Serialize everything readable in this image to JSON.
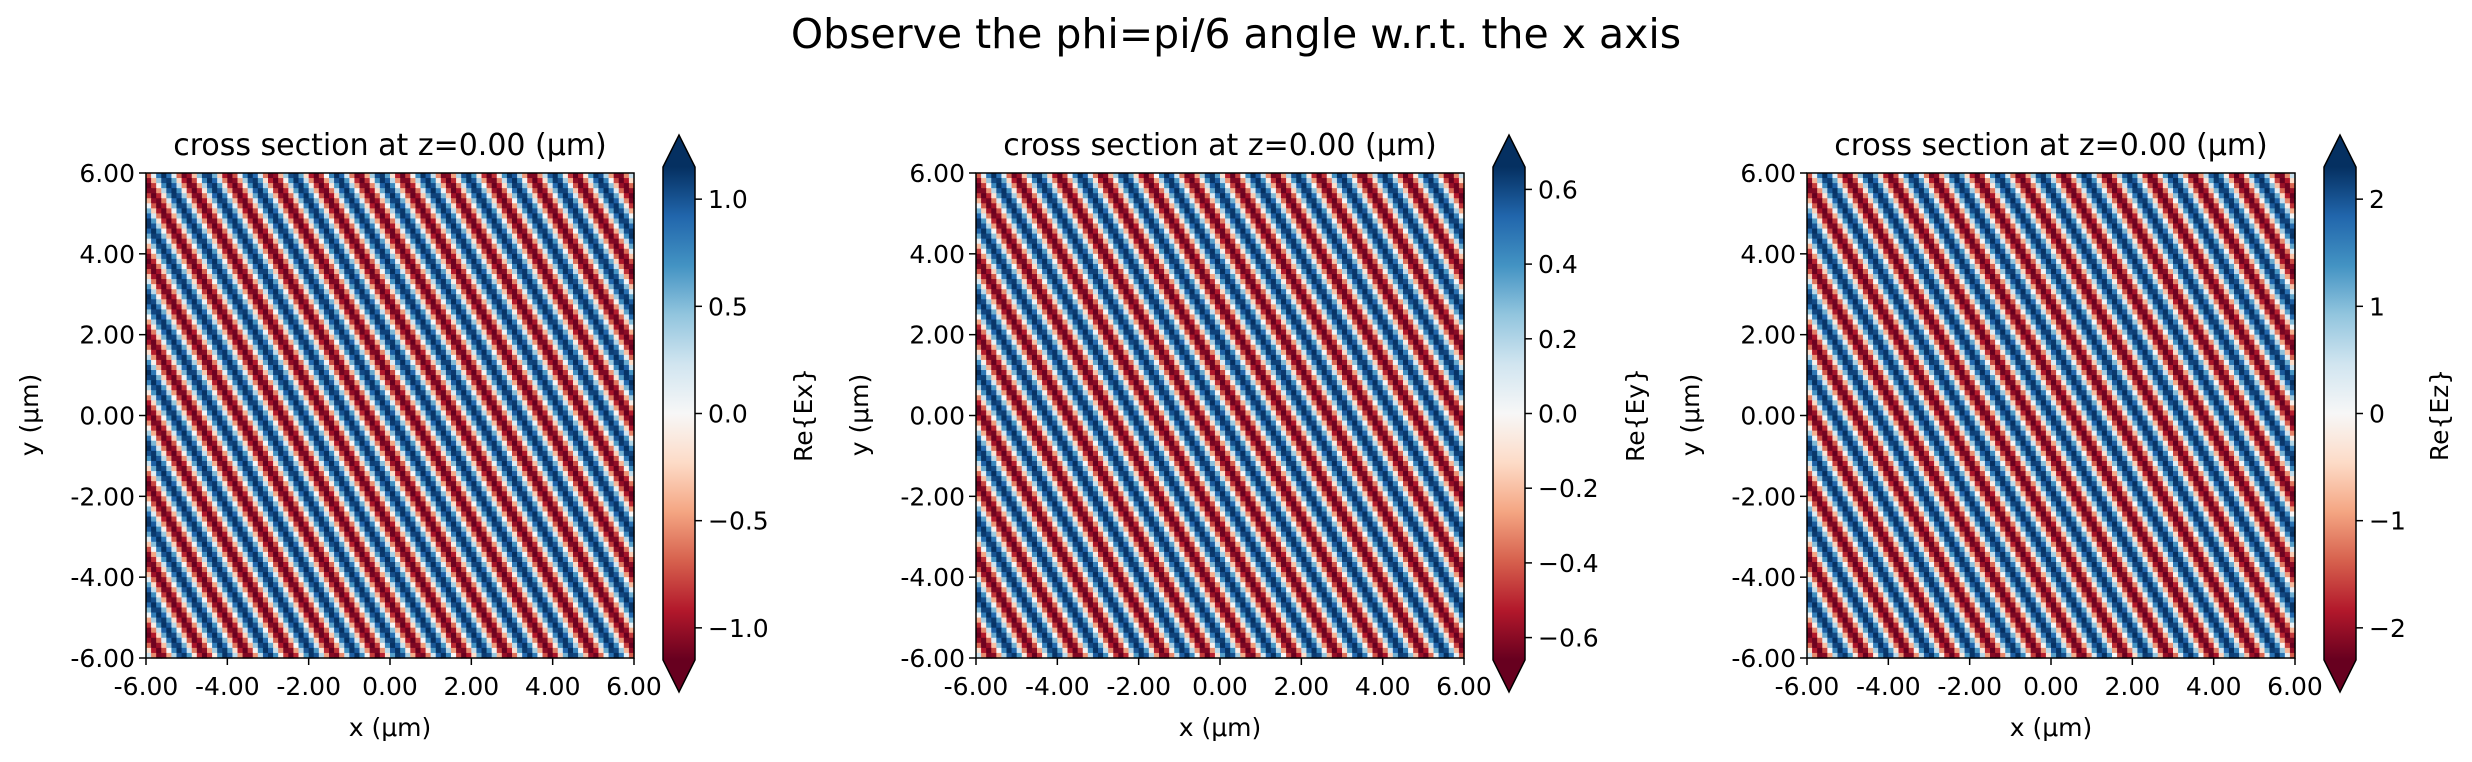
{
  "figure": {
    "suptitle": "Observe the phi=pi/6 angle w.r.t. the x axis"
  },
  "panels": [
    {
      "title": "cross section at z=0.00 (μm)",
      "xlabel": "x (μm)",
      "ylabel": "y (μm)",
      "xticks": [
        "-6.00",
        "-4.00",
        "-2.00",
        "0.00",
        "2.00",
        "4.00",
        "6.00"
      ],
      "yticks": [
        "6.00",
        "4.00",
        "2.00",
        "0.00",
        "-2.00",
        "-4.00",
        "-6.00"
      ],
      "colorbar_label": "Re{Ex}",
      "colorbar_ticks": [
        "1.0",
        "0.5",
        "0.0",
        "−0.5",
        "−1.0"
      ]
    },
    {
      "title": "cross section at z=0.00 (μm)",
      "xlabel": "x (μm)",
      "ylabel": "y (μm)",
      "xticks": [
        "-6.00",
        "-4.00",
        "-2.00",
        "0.00",
        "2.00",
        "4.00",
        "6.00"
      ],
      "yticks": [
        "6.00",
        "4.00",
        "2.00",
        "0.00",
        "-2.00",
        "-4.00",
        "-6.00"
      ],
      "colorbar_label": "Re{Ey}",
      "colorbar_ticks": [
        "0.6",
        "0.4",
        "0.2",
        "0.0",
        "−0.2",
        "−0.4",
        "−0.6"
      ]
    },
    {
      "title": "cross section at z=0.00 (μm)",
      "xlabel": "x (μm)",
      "ylabel": "y (μm)",
      "xticks": [
        "-6.00",
        "-4.00",
        "-2.00",
        "0.00",
        "2.00",
        "4.00",
        "6.00"
      ],
      "yticks": [
        "6.00",
        "4.00",
        "2.00",
        "0.00",
        "-2.00",
        "-4.00",
        "-6.00"
      ],
      "colorbar_label": "Re{Ez}",
      "colorbar_ticks": [
        "2",
        "1",
        "0",
        "−1",
        "−2"
      ]
    }
  ],
  "chart_data": [
    {
      "type": "heatmap",
      "title": "cross section at z=0.00 (μm)",
      "xlabel": "x (μm)",
      "ylabel": "y (μm)",
      "xlim": [
        -6,
        6
      ],
      "ylim": [
        -6,
        6
      ],
      "xtick_values": [
        -6,
        -4,
        -2,
        0,
        2,
        4,
        6
      ],
      "ytick_values": [
        -6,
        -4,
        -2,
        0,
        2,
        4,
        6
      ],
      "colormap": "RdBu",
      "color_low": "#67001f",
      "color_mid": "#f7f7f7",
      "color_high": "#053061",
      "colorbar_label": "Re{Ex}",
      "colorbar_range": [
        -1.15,
        1.15
      ],
      "colorbar_tick_values": [
        1.0,
        0.5,
        0.0,
        -0.5,
        -1.0
      ],
      "colorbar_extend": "both",
      "amplitude": 1.15,
      "phi_deg": 30,
      "stripe_count_across_x": 13
    },
    {
      "type": "heatmap",
      "title": "cross section at z=0.00 (μm)",
      "xlabel": "x (μm)",
      "ylabel": "y (μm)",
      "xlim": [
        -6,
        6
      ],
      "ylim": [
        -6,
        6
      ],
      "xtick_values": [
        -6,
        -4,
        -2,
        0,
        2,
        4,
        6
      ],
      "ytick_values": [
        -6,
        -4,
        -2,
        0,
        2,
        4,
        6
      ],
      "colormap": "RdBu",
      "color_low": "#67001f",
      "color_mid": "#f7f7f7",
      "color_high": "#053061",
      "colorbar_label": "Re{Ey}",
      "colorbar_range": [
        -0.66,
        0.66
      ],
      "colorbar_tick_values": [
        0.6,
        0.4,
        0.2,
        0.0,
        -0.2,
        -0.4,
        -0.6
      ],
      "colorbar_extend": "both",
      "amplitude": 0.66,
      "phi_deg": 30,
      "stripe_count_across_x": 13
    },
    {
      "type": "heatmap",
      "title": "cross section at z=0.00 (μm)",
      "xlabel": "x (μm)",
      "ylabel": "y (μm)",
      "xlim": [
        -6,
        6
      ],
      "ylim": [
        -6,
        6
      ],
      "xtick_values": [
        -6,
        -4,
        -2,
        0,
        2,
        4,
        6
      ],
      "ytick_values": [
        -6,
        -4,
        -2,
        0,
        2,
        4,
        6
      ],
      "colormap": "RdBu",
      "color_low": "#67001f",
      "color_mid": "#f7f7f7",
      "color_high": "#053061",
      "colorbar_label": "Re{Ez}",
      "colorbar_range": [
        -2.3,
        2.3
      ],
      "colorbar_tick_values": [
        2,
        1,
        0,
        -1,
        -2
      ],
      "colorbar_extend": "both",
      "amplitude": 2.3,
      "phi_deg": 30,
      "stripe_count_across_x": 13
    }
  ]
}
